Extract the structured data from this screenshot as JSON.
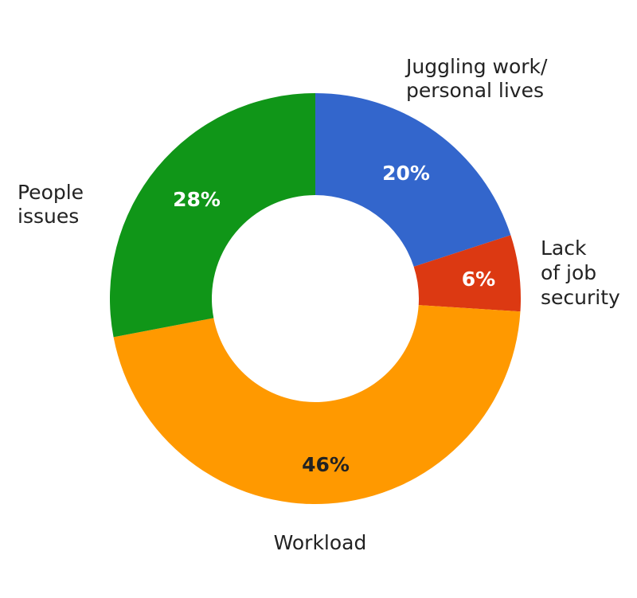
{
  "chart_data": {
    "type": "pie",
    "donut": true,
    "title": "",
    "legend": "none",
    "slices": [
      {
        "category": "Juggling work/ personal lives",
        "label_lines": [
          "Juggling work/",
          "personal lives"
        ],
        "value": 20,
        "value_label": "20%",
        "color": "#3366cc",
        "text_color": "#ffffff"
      },
      {
        "category": "Lack of job security",
        "label_lines": [
          "Lack",
          "of job",
          "security"
        ],
        "value": 6,
        "value_label": "6%",
        "color": "#dc3912",
        "text_color": "#ffffff"
      },
      {
        "category": "Workload",
        "label_lines": [
          "Workload"
        ],
        "value": 46,
        "value_label": "46%",
        "color": "#ff9900",
        "text_color": "#222222"
      },
      {
        "category": "People issues",
        "label_lines": [
          "People",
          "issues"
        ],
        "value": 28,
        "value_label": "28%",
        "color": "#109618",
        "text_color": "#ffffff"
      }
    ]
  }
}
